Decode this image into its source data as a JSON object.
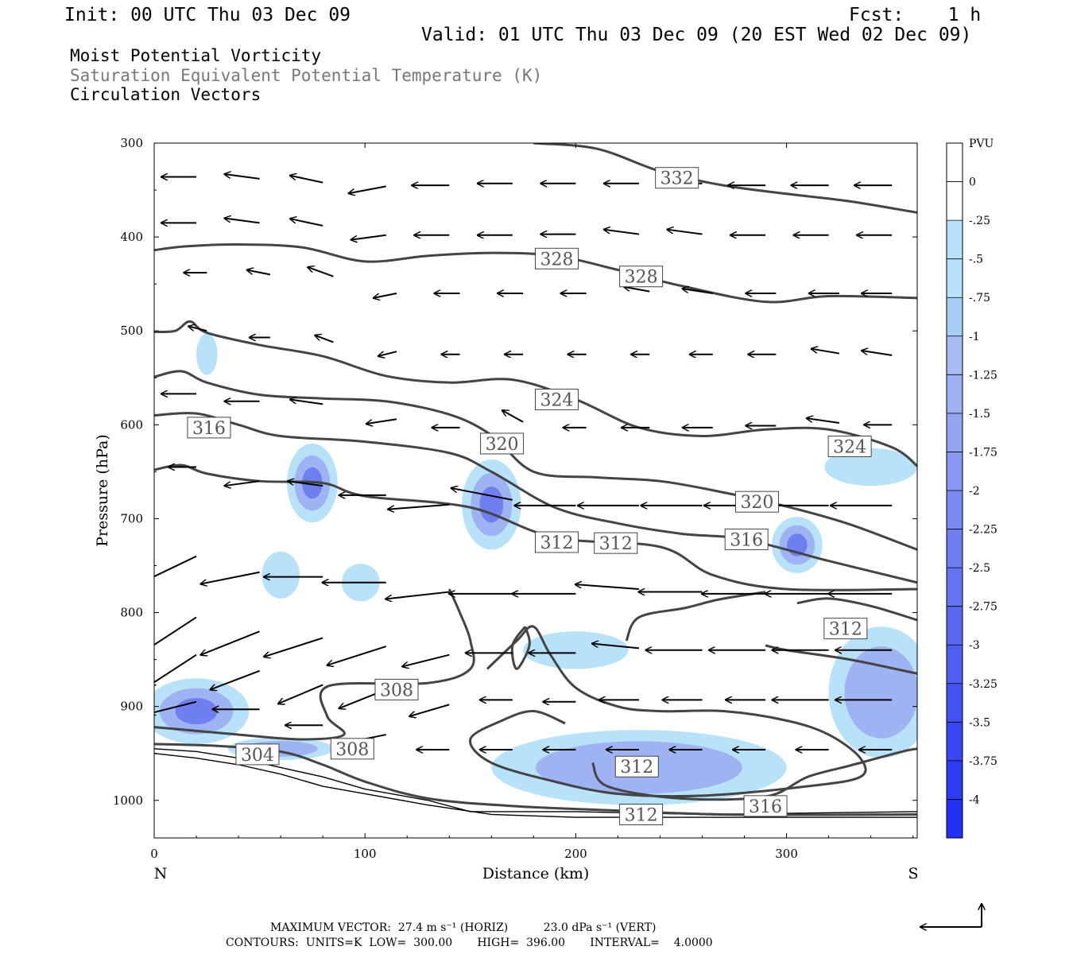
{
  "header": {
    "init": "Init: 00 UTC Thu 03 Dec 09",
    "fcst": "Fcst:    1 h",
    "valid": "Valid: 01 UTC Thu 03 Dec 09 (20 EST Wed 02 Dec 09)"
  },
  "fields": {
    "field1": "Moist Potential Vorticity",
    "field2": "Saturation Equivalent Potential Temperature (K)",
    "field3": "Circulation Vectors"
  },
  "footer": {
    "max_vector": "MAXIMUM VECTOR:  27.4 m s⁻¹ (HORIZ)          23.0 dPa s⁻¹ (VERT)",
    "contours": "CONTOURS:  UNITS=K  LOW=  300.00       HIGH=  396.00       INTERVAL=    4.0000"
  },
  "colors": {
    "fill_light": "#b8e2fa",
    "fill_mid": "#9fb2f2",
    "fill_dark": "#6f7fef",
    "fill_core": "#3f4ff2",
    "contour": "#444444",
    "vector": "#000000"
  },
  "chart_data": {
    "type": "cross-section",
    "xlabel": "Distance (km)",
    "ylabel": "Pressure (hPa)",
    "xlim": [
      0,
      362
    ],
    "ylim": [
      1040,
      300
    ],
    "x_ticks": [
      "0",
      "100",
      "200",
      "300"
    ],
    "x_tick_values": [
      0,
      100,
      200,
      300
    ],
    "y_ticks": [
      "300",
      "400",
      "500",
      "600",
      "700",
      "800",
      "900",
      "1000"
    ],
    "y_tick_values": [
      300,
      400,
      500,
      600,
      700,
      800,
      900,
      1000
    ],
    "end_labels": {
      "left": "N",
      "right": "S"
    },
    "colorbar": {
      "unit": "PVU",
      "labels": [
        "0",
        "-.25",
        "-.5",
        "-.75",
        "-1",
        "-1.25",
        "-1.5",
        "-1.75",
        "-2",
        "-2.25",
        "-2.5",
        "-2.75",
        "-3",
        "-3.25",
        "-3.5",
        "-3.75",
        "-4"
      ],
      "colors": [
        "#ffffff",
        "#ffffff",
        "#b8e2fa",
        "#b8e2fa",
        "#a5cff6",
        "#a7bcf4",
        "#9fb2f2",
        "#94a4f0",
        "#8897f0",
        "#7a89ef",
        "#6f7fef",
        "#6574f0",
        "#5a68f0",
        "#4f5df1",
        "#4452f2",
        "#3946f3",
        "#2e3bf4",
        "#2330f5"
      ]
    },
    "contour_labels": [
      {
        "text": "332",
        "x": 248,
        "p": 337
      },
      {
        "text": "328",
        "x": 191,
        "p": 423
      },
      {
        "text": "328",
        "x": 231,
        "p": 442
      },
      {
        "text": "324",
        "x": 191,
        "p": 573
      },
      {
        "text": "324",
        "x": 330,
        "p": 623
      },
      {
        "text": "320",
        "x": 165,
        "p": 620
      },
      {
        "text": "320",
        "x": 286,
        "p": 682
      },
      {
        "text": "316",
        "x": 26,
        "p": 603
      },
      {
        "text": "316",
        "x": 281,
        "p": 722
      },
      {
        "text": "316",
        "x": 290,
        "p": 1006
      },
      {
        "text": "312",
        "x": 191,
        "p": 725
      },
      {
        "text": "312",
        "x": 219,
        "p": 726
      },
      {
        "text": "312",
        "x": 328,
        "p": 817
      },
      {
        "text": "312",
        "x": 229,
        "p": 964
      },
      {
        "text": "312",
        "x": 231,
        "p": 1015
      },
      {
        "text": "308",
        "x": 115,
        "p": 882
      },
      {
        "text": "308",
        "x": 94,
        "p": 945
      },
      {
        "text": "304",
        "x": 49,
        "p": 951
      }
    ],
    "isentropes": [
      {
        "value": 332,
        "points": [
          [
            180,
            300
          ],
          [
            210,
            306
          ],
          [
            240,
            330
          ],
          [
            270,
            345
          ],
          [
            300,
            354
          ],
          [
            330,
            362
          ],
          [
            362,
            374
          ]
        ]
      },
      {
        "value": 328,
        "points": [
          [
            0,
            414
          ],
          [
            15,
            410
          ],
          [
            40,
            408
          ],
          [
            70,
            411
          ],
          [
            100,
            426
          ],
          [
            130,
            420
          ],
          [
            160,
            417
          ],
          [
            190,
            420
          ],
          [
            220,
            435
          ],
          [
            250,
            452
          ],
          [
            290,
            469
          ],
          [
            320,
            463
          ],
          [
            362,
            465
          ]
        ]
      },
      {
        "value": 324,
        "points": [
          [
            0,
            501
          ],
          [
            10,
            500
          ],
          [
            17,
            490
          ],
          [
            25,
            502
          ],
          [
            50,
            515
          ],
          [
            80,
            527
          ],
          [
            110,
            548
          ],
          [
            140,
            555
          ],
          [
            170,
            552
          ],
          [
            200,
            573
          ],
          [
            230,
            603
          ],
          [
            260,
            612
          ],
          [
            290,
            605
          ],
          [
            320,
            605
          ],
          [
            350,
            624
          ],
          [
            362,
            644
          ]
        ]
      },
      {
        "value": 320,
        "points": [
          [
            0,
            549
          ],
          [
            13,
            543
          ],
          [
            25,
            555
          ],
          [
            50,
            568
          ],
          [
            80,
            572
          ],
          [
            110,
            575
          ],
          [
            140,
            589
          ],
          [
            160,
            611
          ],
          [
            180,
            650
          ],
          [
            210,
            656
          ],
          [
            240,
            660
          ],
          [
            270,
            672
          ],
          [
            300,
            687
          ],
          [
            330,
            706
          ],
          [
            362,
            733
          ]
        ]
      },
      {
        "value": 316,
        "points": [
          [
            0,
            590
          ],
          [
            20,
            588
          ],
          [
            40,
            600
          ],
          [
            60,
            612
          ],
          [
            100,
            618
          ],
          [
            140,
            630
          ],
          [
            160,
            650
          ],
          [
            190,
            688
          ],
          [
            220,
            705
          ],
          [
            250,
            716
          ],
          [
            280,
            722
          ],
          [
            320,
            745
          ],
          [
            362,
            768
          ]
        ]
      },
      {
        "value": 312,
        "points": [
          [
            0,
            648
          ],
          [
            13,
            643
          ],
          [
            25,
            652
          ],
          [
            50,
            660
          ],
          [
            80,
            662
          ],
          [
            100,
            676
          ],
          [
            150,
            688
          ],
          [
            190,
            720
          ],
          [
            240,
            730
          ],
          [
            265,
            760
          ],
          [
            300,
            775
          ],
          [
            362,
            775
          ]
        ]
      }
    ],
    "pv_blobs": [
      {
        "x": 25,
        "p": 525,
        "rx": 5,
        "rp": 22,
        "level": 1
      },
      {
        "x": 75,
        "p": 662,
        "rx": 12,
        "rp": 42,
        "level": 3
      },
      {
        "x": 160,
        "p": 685,
        "rx": 14,
        "rp": 48,
        "level": 3
      },
      {
        "x": 305,
        "p": 728,
        "rx": 12,
        "rp": 30,
        "level": 3
      },
      {
        "x": 340,
        "p": 645,
        "rx": 22,
        "rp": 20,
        "level": 1
      },
      {
        "x": 60,
        "p": 760,
        "rx": 9,
        "rp": 25,
        "level": 1
      },
      {
        "x": 98,
        "p": 768,
        "rx": 9,
        "rp": 20,
        "level": 1
      },
      {
        "x": 200,
        "p": 840,
        "rx": 25,
        "rp": 20,
        "level": 1
      },
      {
        "x": 345,
        "p": 885,
        "rx": 25,
        "rp": 70,
        "level": 2
      },
      {
        "x": 20,
        "p": 905,
        "rx": 25,
        "rp": 35,
        "level": 3
      },
      {
        "x": 60,
        "p": 945,
        "rx": 25,
        "rp": 12,
        "level": 2
      },
      {
        "x": 230,
        "p": 965,
        "rx": 70,
        "rp": 40,
        "level": 2
      }
    ],
    "vectors": [
      {
        "x": 20,
        "p": 336,
        "u": -15,
        "w": 0
      },
      {
        "x": 50,
        "p": 338,
        "u": -15,
        "w": 2
      },
      {
        "x": 80,
        "p": 342,
        "u": -14,
        "w": 3
      },
      {
        "x": 110,
        "p": 346,
        "u": -16,
        "w": -3
      },
      {
        "x": 140,
        "p": 345,
        "u": -16,
        "w": 0
      },
      {
        "x": 170,
        "p": 343,
        "u": -15,
        "w": 0
      },
      {
        "x": 200,
        "p": 343,
        "u": -15,
        "w": 0
      },
      {
        "x": 230,
        "p": 343,
        "u": -15,
        "w": 0
      },
      {
        "x": 260,
        "p": 343,
        "u": -16,
        "w": 0
      },
      {
        "x": 290,
        "p": 345,
        "u": -16,
        "w": 0
      },
      {
        "x": 320,
        "p": 345,
        "u": -16,
        "w": 0
      },
      {
        "x": 350,
        "p": 345,
        "u": -16,
        "w": 0
      },
      {
        "x": 20,
        "p": 385,
        "u": -15,
        "w": 0
      },
      {
        "x": 50,
        "p": 385,
        "u": -15,
        "w": 2
      },
      {
        "x": 80,
        "p": 388,
        "u": -14,
        "w": 3
      },
      {
        "x": 110,
        "p": 398,
        "u": -15,
        "w": -2
      },
      {
        "x": 140,
        "p": 398,
        "u": -15,
        "w": 0
      },
      {
        "x": 170,
        "p": 398,
        "u": -15,
        "w": 0
      },
      {
        "x": 200,
        "p": 397,
        "u": -15,
        "w": 0
      },
      {
        "x": 230,
        "p": 397,
        "u": -15,
        "w": 2
      },
      {
        "x": 260,
        "p": 397,
        "u": -15,
        "w": 2
      },
      {
        "x": 290,
        "p": 398,
        "u": -15,
        "w": 0
      },
      {
        "x": 320,
        "p": 398,
        "u": -15,
        "w": 0
      },
      {
        "x": 350,
        "p": 398,
        "u": -15,
        "w": 0
      },
      {
        "x": 25,
        "p": 438,
        "u": -10,
        "w": 0
      },
      {
        "x": 55,
        "p": 440,
        "u": -10,
        "w": 2
      },
      {
        "x": 85,
        "p": 442,
        "u": -11,
        "w": 4
      },
      {
        "x": 115,
        "p": 460,
        "u": -10,
        "w": -2
      },
      {
        "x": 145,
        "p": 460,
        "u": -11,
        "w": 0
      },
      {
        "x": 175,
        "p": 460,
        "u": -11,
        "w": 0
      },
      {
        "x": 205,
        "p": 460,
        "u": -11,
        "w": 0
      },
      {
        "x": 235,
        "p": 458,
        "u": -11,
        "w": 2
      },
      {
        "x": 265,
        "p": 460,
        "u": -13,
        "w": 2
      },
      {
        "x": 295,
        "p": 460,
        "u": -13,
        "w": 0
      },
      {
        "x": 325,
        "p": 460,
        "u": -13,
        "w": 0
      },
      {
        "x": 350,
        "p": 460,
        "u": -13,
        "w": 0
      },
      {
        "x": 25,
        "p": 500,
        "u": -8,
        "w": 2
      },
      {
        "x": 55,
        "p": 507,
        "u": -9,
        "w": 0
      },
      {
        "x": 85,
        "p": 512,
        "u": -8,
        "w": 3
      },
      {
        "x": 115,
        "p": 522,
        "u": -8,
        "w": -2
      },
      {
        "x": 145,
        "p": 525,
        "u": -8,
        "w": 0
      },
      {
        "x": 175,
        "p": 525,
        "u": -8,
        "w": 0
      },
      {
        "x": 205,
        "p": 525,
        "u": -8,
        "w": 0
      },
      {
        "x": 235,
        "p": 525,
        "u": -8,
        "w": 0
      },
      {
        "x": 265,
        "p": 525,
        "u": -10,
        "w": 0
      },
      {
        "x": 295,
        "p": 525,
        "u": -12,
        "w": 0
      },
      {
        "x": 325,
        "p": 524,
        "u": -12,
        "w": 2
      },
      {
        "x": 350,
        "p": 526,
        "u": -13,
        "w": 2
      },
      {
        "x": 20,
        "p": 567,
        "u": -15,
        "w": 0
      },
      {
        "x": 50,
        "p": 575,
        "u": -15,
        "w": 0
      },
      {
        "x": 80,
        "p": 578,
        "u": -14,
        "w": 2
      },
      {
        "x": 115,
        "p": 594,
        "u": -13,
        "w": -2
      },
      {
        "x": 145,
        "p": 603,
        "u": -12,
        "w": 0
      },
      {
        "x": 175,
        "p": 597,
        "u": -9,
        "w": 5
      },
      {
        "x": 205,
        "p": 603,
        "u": -10,
        "w": 0
      },
      {
        "x": 235,
        "p": 603,
        "u": -12,
        "w": 0
      },
      {
        "x": 265,
        "p": 603,
        "u": -13,
        "w": 0
      },
      {
        "x": 295,
        "p": 601,
        "u": -13,
        "w": 0
      },
      {
        "x": 325,
        "p": 598,
        "u": -14,
        "w": 2
      },
      {
        "x": 350,
        "p": 600,
        "u": -12,
        "w": 0
      },
      {
        "x": 20,
        "p": 645,
        "u": -12,
        "w": 0
      },
      {
        "x": 50,
        "p": 660,
        "u": -15,
        "w": -2
      },
      {
        "x": 80,
        "p": 665,
        "u": -15,
        "w": 2
      },
      {
        "x": 110,
        "p": 675,
        "u": -20,
        "w": 0
      },
      {
        "x": 140,
        "p": 685,
        "u": -26,
        "w": -2
      },
      {
        "x": 170,
        "p": 680,
        "u": -26,
        "w": 5
      },
      {
        "x": 200,
        "p": 686,
        "u": -26,
        "w": 0
      },
      {
        "x": 230,
        "p": 686,
        "u": -26,
        "w": 0
      },
      {
        "x": 260,
        "p": 686,
        "u": -26,
        "w": 0
      },
      {
        "x": 290,
        "p": 686,
        "u": -26,
        "w": 0
      },
      {
        "x": 320,
        "p": 686,
        "u": -26,
        "w": 0
      },
      {
        "x": 350,
        "p": 686,
        "u": -26,
        "w": 0
      },
      {
        "x": 20,
        "p": 740,
        "u": -25,
        "w": -12
      },
      {
        "x": 50,
        "p": 757,
        "u": -25,
        "w": -5
      },
      {
        "x": 80,
        "p": 762,
        "u": -25,
        "w": 0
      },
      {
        "x": 110,
        "p": 768,
        "u": -27,
        "w": 0
      },
      {
        "x": 140,
        "p": 778,
        "u": -27,
        "w": -3
      },
      {
        "x": 170,
        "p": 780,
        "u": -27,
        "w": 0
      },
      {
        "x": 200,
        "p": 780,
        "u": -27,
        "w": 0
      },
      {
        "x": 230,
        "p": 775,
        "u": -27,
        "w": 2
      },
      {
        "x": 260,
        "p": 778,
        "u": -27,
        "w": 0
      },
      {
        "x": 290,
        "p": 780,
        "u": -27,
        "w": 0
      },
      {
        "x": 320,
        "p": 780,
        "u": -27,
        "w": 0
      },
      {
        "x": 350,
        "p": 780,
        "u": -27,
        "w": 0
      },
      {
        "x": 20,
        "p": 805,
        "u": -23,
        "w": -15
      },
      {
        "x": 50,
        "p": 820,
        "u": -25,
        "w": -10
      },
      {
        "x": 80,
        "p": 827,
        "u": -25,
        "w": -8
      },
      {
        "x": 110,
        "p": 836,
        "u": -25,
        "w": -8
      },
      {
        "x": 140,
        "p": 845,
        "u": -20,
        "w": -5
      },
      {
        "x": 170,
        "p": 843,
        "u": -20,
        "w": 0
      },
      {
        "x": 200,
        "p": 843,
        "u": -20,
        "w": 0
      },
      {
        "x": 230,
        "p": 838,
        "u": -20,
        "w": 2
      },
      {
        "x": 260,
        "p": 840,
        "u": -24,
        "w": 0
      },
      {
        "x": 290,
        "p": 840,
        "u": -24,
        "w": 0
      },
      {
        "x": 320,
        "p": 840,
        "u": -24,
        "w": 0
      },
      {
        "x": 350,
        "p": 840,
        "u": -24,
        "w": 0
      },
      {
        "x": 20,
        "p": 845,
        "u": -20,
        "w": -13
      },
      {
        "x": 50,
        "p": 862,
        "u": -21,
        "w": -8
      },
      {
        "x": 80,
        "p": 877,
        "u": -19,
        "w": -8
      },
      {
        "x": 110,
        "p": 882,
        "u": -20,
        "w": -8
      },
      {
        "x": 140,
        "p": 898,
        "u": -17,
        "w": -5
      },
      {
        "x": 170,
        "p": 893,
        "u": -14,
        "w": 0
      },
      {
        "x": 200,
        "p": 895,
        "u": -14,
        "w": 0
      },
      {
        "x": 230,
        "p": 893,
        "u": -17,
        "w": 0
      },
      {
        "x": 260,
        "p": 893,
        "u": -17,
        "w": 0
      },
      {
        "x": 290,
        "p": 893,
        "u": -17,
        "w": 0
      },
      {
        "x": 320,
        "p": 893,
        "u": -24,
        "w": 0
      },
      {
        "x": 350,
        "p": 893,
        "u": -24,
        "w": 0
      },
      {
        "x": 20,
        "p": 895,
        "u": -20,
        "w": -5
      },
      {
        "x": 50,
        "p": 903,
        "u": -20,
        "w": 0
      },
      {
        "x": 80,
        "p": 920,
        "u": -16,
        "w": 0
      },
      {
        "x": 110,
        "p": 930,
        "u": -20,
        "w": -4
      },
      {
        "x": 140,
        "p": 946,
        "u": -14,
        "w": 0
      },
      {
        "x": 170,
        "p": 946,
        "u": -14,
        "w": 0
      },
      {
        "x": 200,
        "p": 946,
        "u": -14,
        "w": 0
      },
      {
        "x": 230,
        "p": 946,
        "u": -14,
        "w": 0
      },
      {
        "x": 260,
        "p": 946,
        "u": -14,
        "w": 0
      },
      {
        "x": 290,
        "p": 946,
        "u": -14,
        "w": 0
      },
      {
        "x": 320,
        "p": 946,
        "u": -14,
        "w": 0
      },
      {
        "x": 350,
        "p": 946,
        "u": -14,
        "w": 0
      }
    ]
  }
}
